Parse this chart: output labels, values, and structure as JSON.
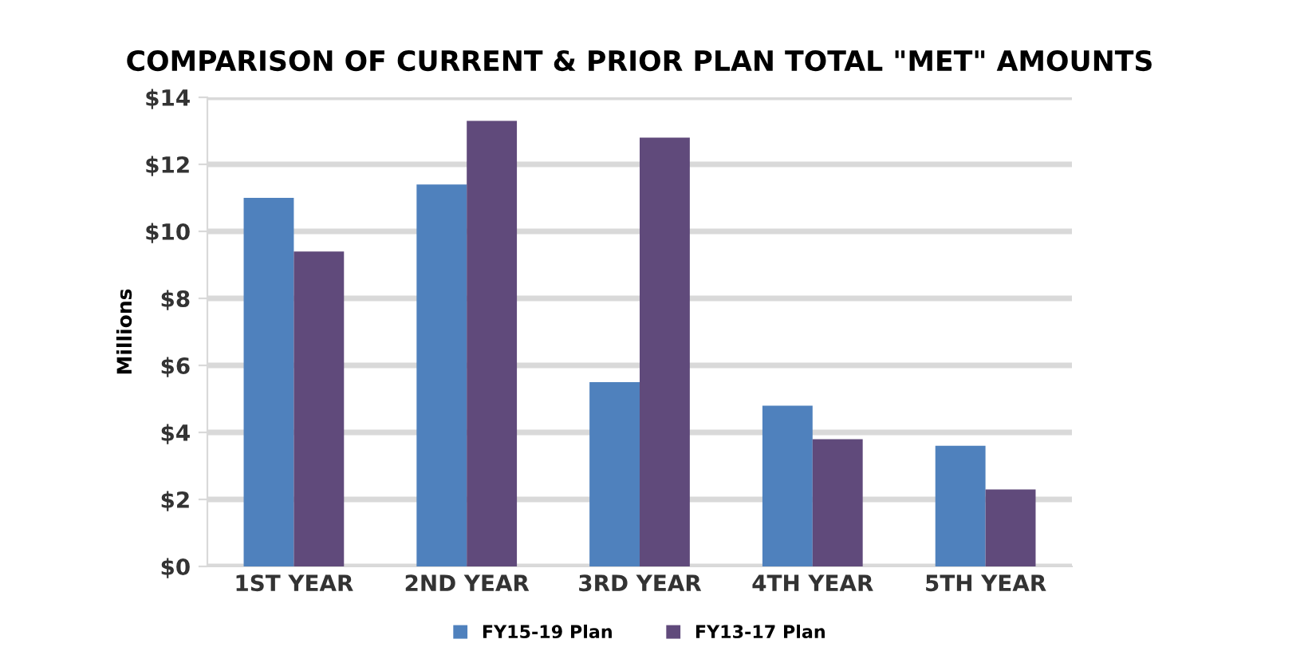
{
  "chart_data": {
    "type": "bar",
    "title": "COMPARISON OF CURRENT & PRIOR PLAN TOTAL \"MET\" AMOUNTS",
    "ylabel": "Millions",
    "categories": [
      "1ST YEAR",
      "2ND YEAR",
      "3RD YEAR",
      "4TH YEAR",
      "5TH YEAR"
    ],
    "series": [
      {
        "name": "FY15-19 Plan",
        "color": "#4f81bd",
        "values": [
          11.0,
          11.4,
          5.5,
          4.8,
          3.6
        ]
      },
      {
        "name": "FY13-17 Plan",
        "color": "#604a7b",
        "values": [
          9.4,
          13.3,
          12.8,
          3.8,
          2.3
        ]
      }
    ],
    "ylim": [
      0,
      14
    ],
    "yticks": [
      {
        "value": 0,
        "label": "$0"
      },
      {
        "value": 2,
        "label": "$2"
      },
      {
        "value": 4,
        "label": "$4"
      },
      {
        "value": 6,
        "label": "$6"
      },
      {
        "value": 8,
        "label": "$8"
      },
      {
        "value": 10,
        "label": "$10"
      },
      {
        "value": 12,
        "label": "$12"
      },
      {
        "value": 14,
        "label": "$14"
      }
    ],
    "grid": "y",
    "legend": "bottom"
  }
}
